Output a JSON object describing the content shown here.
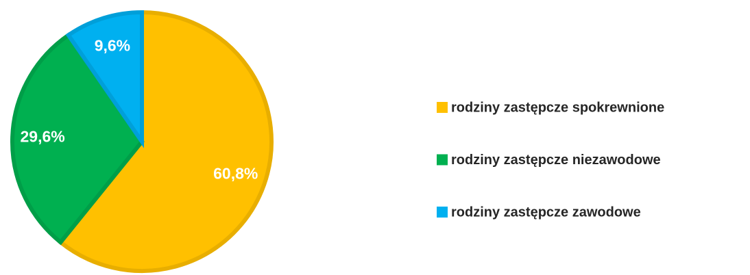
{
  "chart_data": {
    "type": "pie",
    "categories": [
      "rodziny zastępcze spokrewnione",
      "rodziny zastępcze niezawodowe",
      "rodziny zastępcze zawodowe"
    ],
    "values": [
      60.8,
      29.6,
      9.6
    ],
    "value_labels": [
      "60,8%",
      "29,6%",
      "9,6%"
    ],
    "colors": [
      "#FFC000",
      "#00B050",
      "#00B0F0"
    ],
    "border_colors": [
      "#E8AE00",
      "#009E48",
      "#009FD9"
    ],
    "legend": "right"
  }
}
